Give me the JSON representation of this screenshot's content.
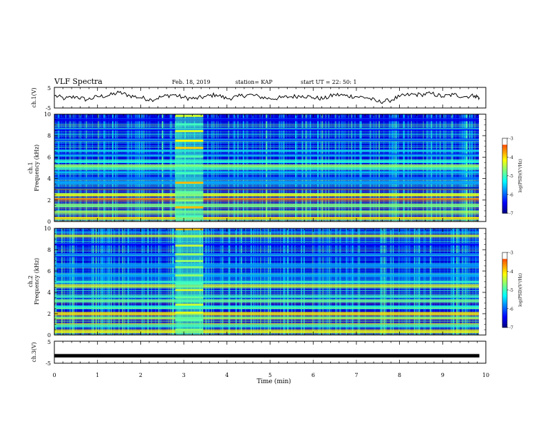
{
  "header": {
    "title": "VLF Spectra",
    "date": "Feb. 18, 2019",
    "station": "station= KAP",
    "start": "start  UT =   22: 50: 1"
  },
  "chart_data": [
    {
      "type": "line",
      "name": "ch1-waveform",
      "ylabel": "ch.1(V)",
      "ylim": [
        -5,
        5
      ],
      "yticks": [
        "5",
        "-5"
      ],
      "xlim": [
        0,
        10
      ],
      "x": [
        0,
        0.25,
        0.5,
        0.75,
        1.0,
        1.25,
        1.5,
        1.75,
        2.0,
        2.25,
        2.5,
        2.75,
        3.0,
        3.25,
        3.5,
        3.75,
        4.0,
        4.25,
        4.5,
        4.75,
        5.0,
        5.25,
        5.5,
        5.75,
        6.0,
        6.25,
        6.5,
        6.75,
        7.0,
        7.25,
        7.5,
        7.75,
        8.0,
        8.25,
        8.5,
        8.75,
        9.0,
        9.25,
        9.5,
        9.75,
        9.85
      ],
      "values": [
        1.0,
        -0.5,
        0.5,
        -1.0,
        0.5,
        1.0,
        2.5,
        1.0,
        0.0,
        -1.0,
        0.5,
        1.5,
        0.0,
        -0.5,
        0.5,
        1.5,
        -0.5,
        0.5,
        1.5,
        0.5,
        -0.5,
        0.0,
        0.5,
        1.0,
        0.0,
        -0.5,
        1.5,
        1.0,
        0.5,
        0.0,
        -2.0,
        -1.5,
        0.5,
        1.5,
        1.5,
        2.0,
        0.5,
        1.5,
        0.5,
        1.0,
        0.0
      ]
    },
    {
      "type": "heatmap",
      "name": "ch1-spectrogram",
      "ylabel": "ch.1\nFrequency  (kHz)",
      "ylim": [
        0,
        10
      ],
      "yticks": [
        "0",
        "2",
        "4",
        "6",
        "8",
        "10"
      ],
      "xlim": [
        0,
        10
      ],
      "colorbar": {
        "label": "log(PSD)(V²/Hz)",
        "range": [
          -7,
          -3
        ],
        "ticks": [
          "-3",
          "-4",
          "-5",
          "-6",
          "-7"
        ]
      },
      "bands": [
        {
          "f": 0.3,
          "level": -4.0
        },
        {
          "f": 0.9,
          "level": -4.5
        },
        {
          "f": 1.5,
          "level": -4.8
        },
        {
          "f": 2.1,
          "level": -3.6
        },
        {
          "f": 2.5,
          "level": -4.2
        },
        {
          "f": 3.1,
          "level": -6.8
        },
        {
          "f": 3.6,
          "level": -5.8
        },
        {
          "f": 4.0,
          "level": -6.2
        },
        {
          "f": 4.6,
          "level": -5.6
        },
        {
          "f": 5.0,
          "level": -5.0
        },
        {
          "f": 5.2,
          "level": -4.6
        },
        {
          "f": 5.6,
          "level": -5.2
        },
        {
          "f": 6.2,
          "level": -6.0
        },
        {
          "f": 6.6,
          "level": -5.5
        },
        {
          "f": 7.6,
          "level": -6.3
        },
        {
          "f": 8.6,
          "level": -6.4
        },
        {
          "f": 9.5,
          "level": -6.5
        }
      ],
      "burst": {
        "t_start": 2.8,
        "t_end": 3.45,
        "level": -3.8
      }
    },
    {
      "type": "heatmap",
      "name": "ch2-spectrogram",
      "ylabel": "ch.2\nFrequency  (kHz)",
      "ylim": [
        0,
        10
      ],
      "yticks": [
        "0",
        "2",
        "4",
        "6",
        "8",
        "10"
      ],
      "xlim": [
        0,
        10
      ],
      "colorbar": {
        "label": "log(PSD)(V²/Hz)",
        "range": [
          -7,
          -3
        ],
        "ticks": [
          "-3",
          "-4",
          "-5",
          "-6",
          "-7"
        ]
      },
      "bands": [
        {
          "f": 0.3,
          "level": -4.2
        },
        {
          "f": 0.9,
          "level": -5.0
        },
        {
          "f": 1.6,
          "level": -4.6
        },
        {
          "f": 2.0,
          "level": -4.0
        },
        {
          "f": 2.6,
          "level": -5.2
        },
        {
          "f": 3.2,
          "level": -4.8
        },
        {
          "f": 3.6,
          "level": -5.0
        },
        {
          "f": 4.6,
          "level": -4.2
        },
        {
          "f": 5.0,
          "level": -5.0
        },
        {
          "f": 5.6,
          "level": -5.6
        },
        {
          "f": 6.5,
          "level": -5.8
        },
        {
          "f": 7.5,
          "level": -6.2
        },
        {
          "f": 8.5,
          "level": -6.4
        },
        {
          "f": 9.3,
          "level": -4.0
        }
      ],
      "burst": {
        "t_start": 2.8,
        "t_end": 3.45,
        "level": -3.8
      }
    },
    {
      "type": "line",
      "name": "ch3-waveform",
      "ylabel": "ch.3(V)",
      "ylim": [
        -5,
        5
      ],
      "yticks": [
        "5",
        "-5"
      ],
      "xlim": [
        0,
        10
      ],
      "x": [
        0,
        9.85
      ],
      "values": [
        -1.6,
        -1.6
      ]
    }
  ],
  "xaxis": {
    "label": "Time  (min)",
    "ticks": [
      "0",
      "1",
      "2",
      "3",
      "4",
      "5",
      "6",
      "7",
      "8",
      "9",
      "10"
    ]
  },
  "colors": {
    "colormap": [
      "#00007f",
      "#0000ff",
      "#007fff",
      "#00ffff",
      "#7fff7f",
      "#ffff00",
      "#ff7f00",
      "#ff0000",
      "#ffffff"
    ]
  }
}
